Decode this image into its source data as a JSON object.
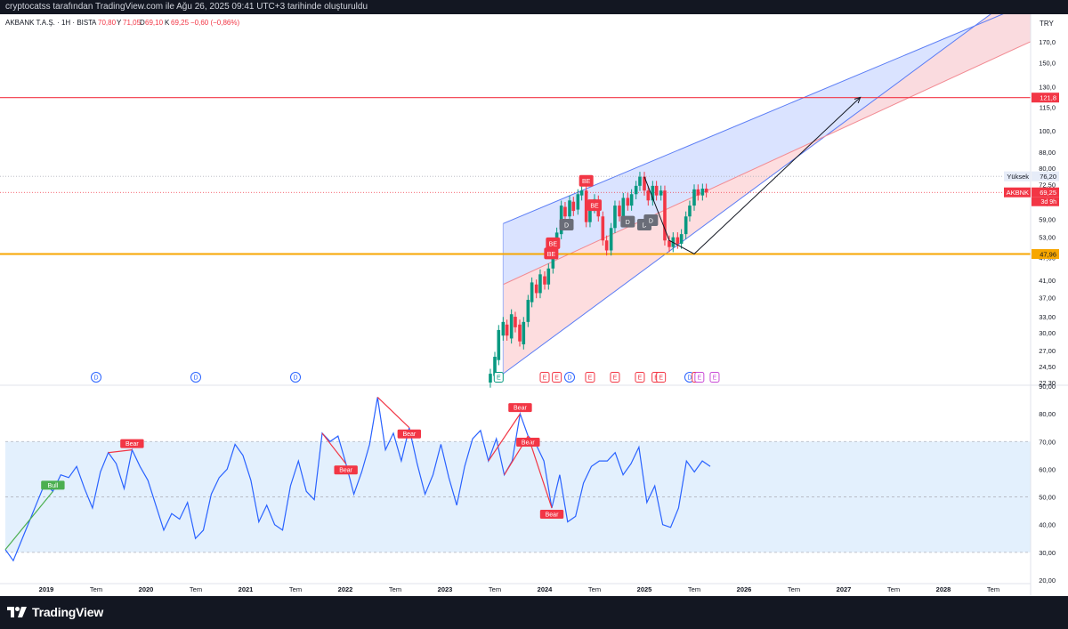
{
  "header": {
    "snapshot_text": "cryptocatss tarafından TradingView.com ile Ağu 26, 2025 09:41 UTC+3 tarihinde oluşturuldu",
    "symbol_title": "AKBANK T.A.Ş. · 1H · BIST",
    "ohlc": {
      "open_label": "A",
      "open": "70,80",
      "high_label": "Y",
      "high": "71,05",
      "low_label": "D",
      "low": "69,10",
      "close_label": "K",
      "close": "69,25",
      "change": "−0,60 (−0,86%)"
    },
    "currency": "TRY"
  },
  "footer": {
    "brand": "TradingView"
  },
  "colors": {
    "up": "#089981",
    "down": "#f23645",
    "rsi": "#2962ff",
    "orange_line": "#f7a600",
    "red_line": "#f23645",
    "channel_blue": "#d6e0ff",
    "channel_red": "#fdd9dc",
    "rsi_band": "#e3f0fd"
  },
  "chart_data": [
    {
      "type": "candlestick",
      "title": "AKBANK T.A.Ş. · 1H · BIST",
      "y_scale": "log",
      "ylim": [
        22.3,
        180
      ],
      "y_ticks": [
        "170,0",
        "150,0",
        "130,0",
        "115,0",
        "100,0",
        "88,00",
        "80,00",
        "72,50",
        "65,00",
        "59,00",
        "53,00",
        "47,00",
        "41,00",
        "37,00",
        "33,00",
        "30,00",
        "27,00",
        "24,50",
        "22,30"
      ],
      "x_ticks": [
        "2019",
        "Tem",
        "2020",
        "Tem",
        "2021",
        "Tem",
        "2022",
        "Tem",
        "2023",
        "Tem",
        "2024",
        "Tem",
        "2025",
        "Tem",
        "2026",
        "Tem",
        "2027",
        "Tem",
        "2028",
        "Tem"
      ],
      "price_labels": {
        "resistance": {
          "value": 121.8,
          "text": "121,8"
        },
        "high": {
          "label": "Yüksek",
          "value": 76.2,
          "text": "76,20"
        },
        "last": {
          "label": "AKBNK",
          "value": 69.25,
          "text": "69,25",
          "countdown": "3d 9h"
        },
        "support": {
          "value": 47.96,
          "text": "47,96"
        }
      },
      "series": [
        {
          "name": "AKBANK T.A.Ş.",
          "values": [
            [
              "2023-06-15",
              22.3,
              23.5
            ],
            [
              "2023-07-01",
              23.2,
              26.0
            ],
            [
              "2023-07-15",
              25.5,
              30.5
            ],
            [
              "2023-08-01",
              29.5,
              32.0
            ],
            [
              "2023-08-15",
              31.5,
              29.5
            ],
            [
              "2023-09-01",
              29.0,
              33.5
            ],
            [
              "2023-09-15",
              33.0,
              31.0
            ],
            [
              "2023-10-01",
              31.5,
              28.5
            ],
            [
              "2023-10-15",
              28.0,
              32.0
            ],
            [
              "2023-11-01",
              32.0,
              36.5
            ],
            [
              "2023-11-15",
              36.0,
              40.5
            ],
            [
              "2023-12-01",
              40.0,
              38.0
            ],
            [
              "2023-12-15",
              38.0,
              42.5
            ],
            [
              "2024-01-01",
              42.0,
              40.0
            ],
            [
              "2024-01-15",
              40.0,
              44.0
            ],
            [
              "2024-02-01",
              44.0,
              50.0
            ],
            [
              "2024-02-15",
              50.0,
              54.5
            ],
            [
              "2024-03-01",
              54.0,
              64.0
            ],
            [
              "2024-03-15",
              63.5,
              60.0
            ],
            [
              "2024-04-01",
              60.0,
              66.0
            ],
            [
              "2024-04-15",
              65.5,
              62.0
            ],
            [
              "2024-05-01",
              62.5,
              68.5
            ],
            [
              "2024-05-15",
              68.0,
              70.0
            ],
            [
              "2024-06-01",
              70.0,
              58.0
            ],
            [
              "2024-06-15",
              58.0,
              63.0
            ],
            [
              "2024-07-01",
              63.0,
              66.5
            ],
            [
              "2024-07-15",
              66.0,
              60.0
            ],
            [
              "2024-08-01",
              60.0,
              52.0
            ],
            [
              "2024-08-15",
              52.0,
              49.0
            ],
            [
              "2024-09-01",
              49.0,
              56.0
            ],
            [
              "2024-09-15",
              56.0,
              64.0
            ],
            [
              "2024-10-01",
              64.0,
              60.0
            ],
            [
              "2024-10-15",
              60.0,
              67.0
            ],
            [
              "2024-11-01",
              67.0,
              64.0
            ],
            [
              "2024-11-15",
              64.0,
              68.5
            ],
            [
              "2024-12-01",
              68.5,
              72.0
            ],
            [
              "2024-12-15",
              72.0,
              76.0
            ],
            [
              "2025-01-01",
              76.0,
              70.0
            ],
            [
              "2025-01-15",
              70.0,
              66.0
            ],
            [
              "2025-02-01",
              66.0,
              72.0
            ],
            [
              "2025-02-15",
              72.0,
              68.0
            ],
            [
              "2025-03-01",
              68.0,
              70.0
            ],
            [
              "2025-03-15",
              70.0,
              52.0
            ],
            [
              "2025-04-01",
              52.0,
              50.0
            ],
            [
              "2025-04-15",
              50.0,
              53.0
            ],
            [
              "2025-05-01",
              53.0,
              51.0
            ],
            [
              "2025-05-15",
              51.0,
              54.0
            ],
            [
              "2025-06-01",
              54.0,
              60.0
            ],
            [
              "2025-06-15",
              60.0,
              64.0
            ],
            [
              "2025-07-01",
              64.0,
              70.5
            ],
            [
              "2025-07-15",
              70.5,
              68.0
            ],
            [
              "2025-08-01",
              68.0,
              70.8
            ],
            [
              "2025-08-15",
              70.8,
              69.25
            ]
          ]
        }
      ],
      "annotations": [
        "BE",
        "BE",
        "BE",
        "BE",
        "D",
        "D",
        "D",
        "D"
      ],
      "event_markers": [
        "D",
        "D",
        "D",
        "E",
        "E",
        "E",
        "D",
        "E",
        "E",
        "E",
        "E",
        "E",
        "D",
        "E",
        "E",
        "E",
        "E"
      ],
      "trendlines": {
        "upper_wedge": [
          [
            "2023-08-01",
            57.5
          ],
          [
            "2028-03-01",
            180
          ]
        ],
        "lower_wedge": [
          [
            "2023-08-01",
            23.5
          ],
          [
            "2028-03-01",
            175
          ]
        ],
        "projection": [
          [
            "2025-01-01",
            76
          ],
          [
            "2025-04-01",
            52
          ],
          [
            "2025-07-01",
            48
          ],
          [
            "2027-03-01",
            122
          ]
        ]
      }
    },
    {
      "type": "line",
      "title": "RSI",
      "ylim": [
        20,
        90
      ],
      "y_ticks": [
        "90,00",
        "80,00",
        "70,00",
        "60,00",
        "50,00",
        "40,00",
        "30,00",
        "20,00"
      ],
      "bands": {
        "upper": 70,
        "middle": 50,
        "lower": 30
      },
      "labels": {
        "bull": "Bull",
        "bear": "Bear"
      },
      "series": [
        {
          "name": "RSI",
          "values": [
            31,
            27,
            34,
            41,
            48,
            55,
            52,
            58,
            57,
            61,
            53,
            46,
            59,
            66,
            62,
            53,
            67,
            61,
            56,
            47,
            38,
            44,
            42,
            48,
            35,
            38,
            51,
            57,
            60,
            69,
            65,
            56,
            41,
            47,
            40,
            38,
            54,
            63,
            52,
            49,
            73,
            70,
            72,
            62,
            51,
            59,
            69,
            86,
            67,
            73,
            63,
            75,
            62,
            51,
            58,
            69,
            57,
            47,
            61,
            71,
            74,
            63,
            71,
            58,
            63,
            80,
            72,
            69,
            63,
            46,
            58,
            41,
            43,
            55,
            61,
            63,
            63,
            66,
            58,
            62,
            68,
            48,
            54,
            40,
            39,
            46,
            63,
            59,
            63,
            61
          ]
        }
      ]
    }
  ]
}
